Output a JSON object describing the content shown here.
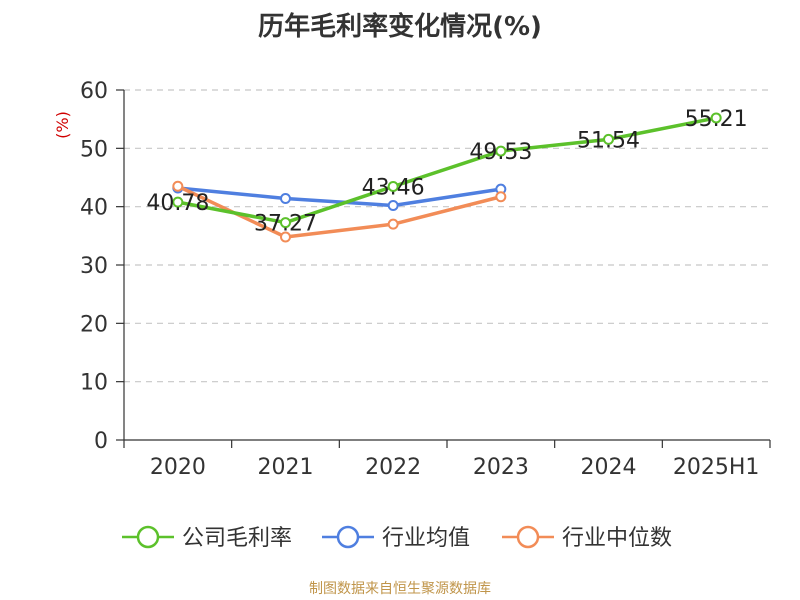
{
  "chart_data": {
    "type": "line",
    "title": "历年毛利率变化情况(%)",
    "ylabel": "(%)",
    "xlabel": "",
    "categories": [
      "2020",
      "2021",
      "2022",
      "2023",
      "2024",
      "2025H1"
    ],
    "ylim": [
      0,
      60
    ],
    "yticks": [
      0,
      10,
      20,
      30,
      40,
      50,
      60
    ],
    "grid": true,
    "legend_position": "bottom",
    "series": [
      {
        "name": "公司毛利率",
        "color": "#5cc12b",
        "values": [
          40.78,
          37.27,
          43.46,
          49.53,
          51.54,
          55.21
        ],
        "labels": [
          "40.78",
          "37.27",
          "43.46",
          "49.53",
          "51.54",
          "55.21"
        ]
      },
      {
        "name": "行业均值",
        "color": "#4f7fe0",
        "values": [
          43.2,
          41.4,
          40.2,
          43.0,
          null,
          null
        ]
      },
      {
        "name": "行业中位数",
        "color": "#f28c57",
        "values": [
          43.5,
          34.8,
          37.0,
          41.7,
          null,
          null
        ]
      }
    ]
  },
  "source_note": "制图数据来自恒生聚源数据库"
}
